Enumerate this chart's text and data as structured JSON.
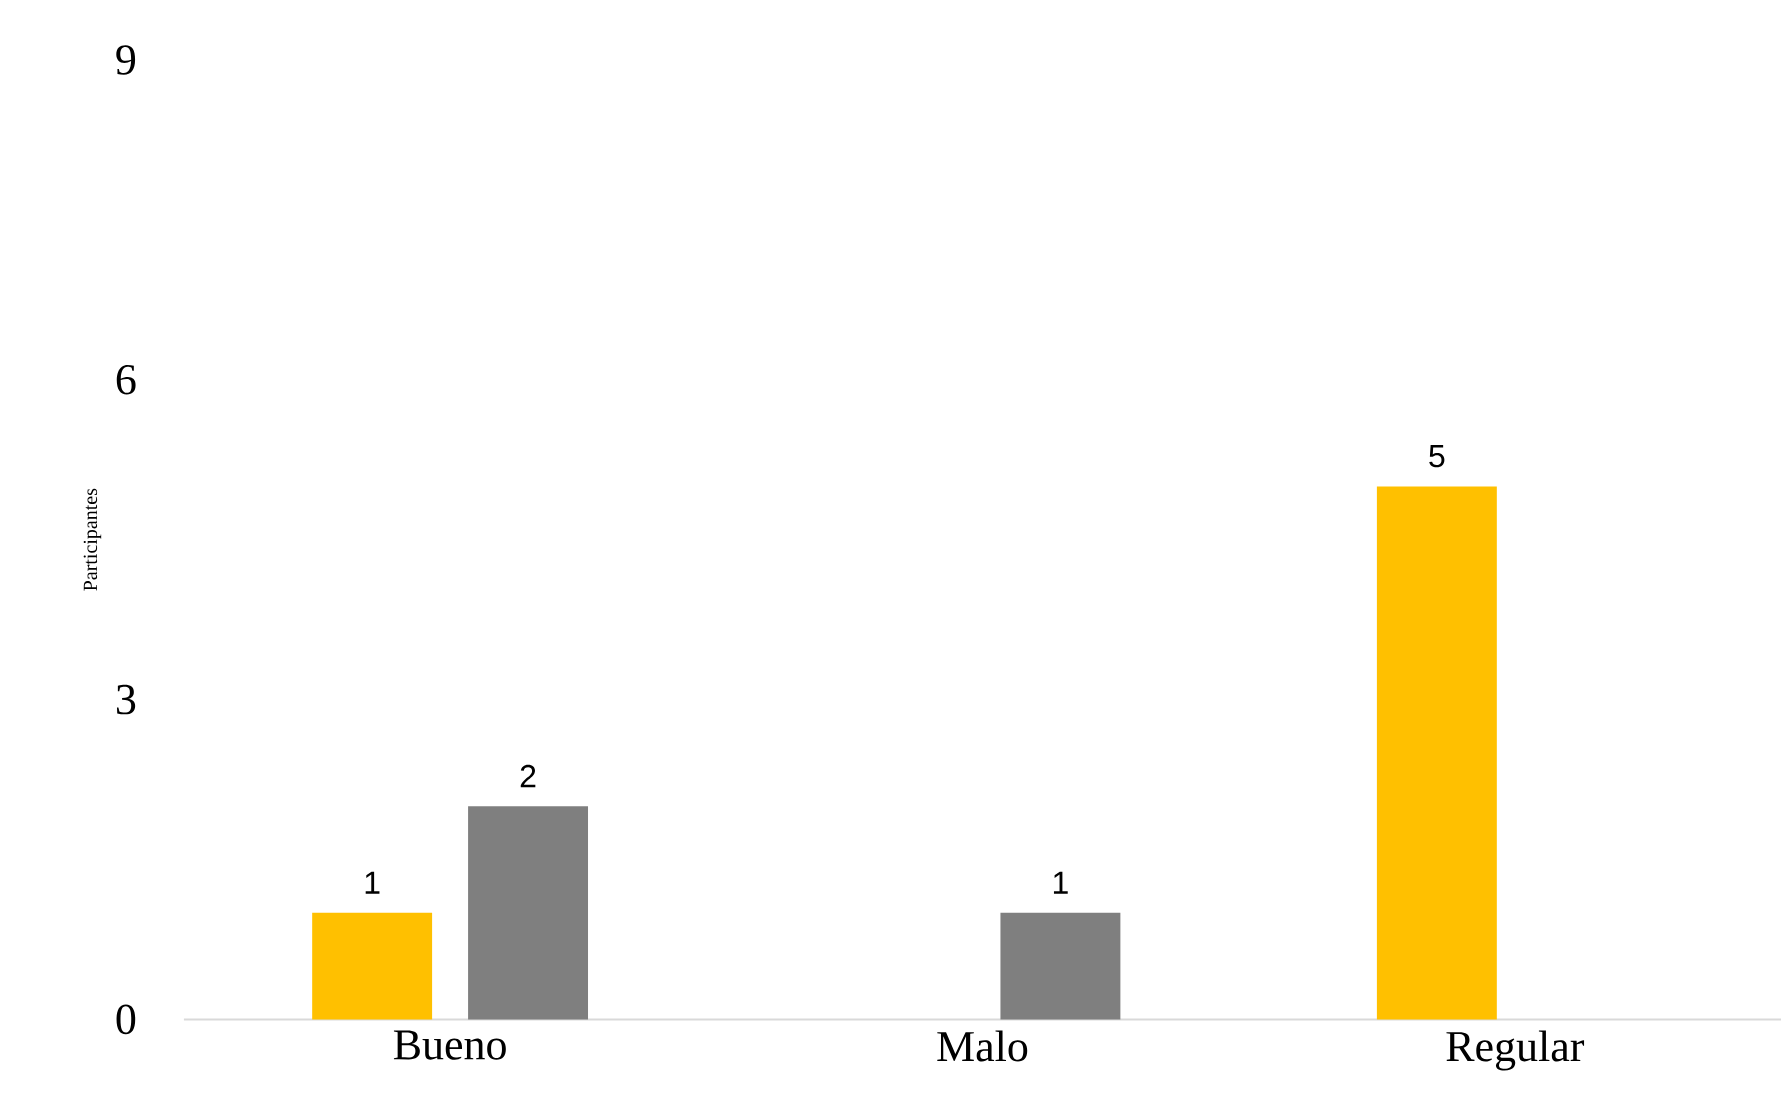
{
  "chart_data": {
    "type": "bar",
    "ylabel": "Participantes",
    "categories": [
      "Bueno",
      "Malo",
      "Regular"
    ],
    "series": [
      {
        "color": "#ffc000",
        "values": [
          1,
          null,
          5
        ]
      },
      {
        "color": "#7f7f7f",
        "values": [
          2,
          1,
          null
        ]
      }
    ],
    "ylim": [
      0,
      9
    ],
    "yticks": [
      0,
      3,
      6,
      9
    ],
    "data_labels": true
  }
}
